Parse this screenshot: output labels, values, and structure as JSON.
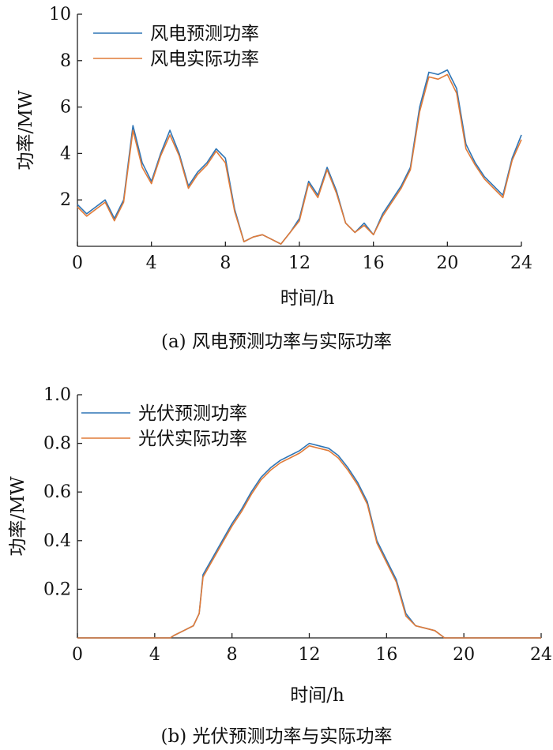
{
  "chart_data": [
    {
      "type": "line",
      "title": "(a) 风电预测功率与实际功率",
      "xlabel": "时间/h",
      "ylabel": "功率/MW",
      "xlim": [
        0,
        24
      ],
      "ylim": [
        0,
        10
      ],
      "x_ticks": [
        0,
        4,
        8,
        12,
        16,
        20,
        24
      ],
      "y_ticks": [
        2,
        4,
        6,
        8,
        10
      ],
      "legend_position": "top-left",
      "x": [
        0,
        0.5,
        1,
        1.5,
        2,
        2.5,
        3,
        3.5,
        4,
        4.5,
        5,
        5.5,
        6,
        6.5,
        7,
        7.5,
        8,
        8.5,
        9,
        9.5,
        10,
        10.5,
        11,
        11.5,
        12,
        12.5,
        13,
        13.5,
        14,
        14.5,
        15,
        15.5,
        16,
        16.5,
        17,
        17.5,
        18,
        18.5,
        19,
        19.5,
        20,
        20.5,
        21,
        21.5,
        22,
        22.5,
        23,
        23.5,
        24
      ],
      "series": [
        {
          "name": "风电预测功率",
          "color": "#2e75b6",
          "values": [
            1.8,
            1.4,
            1.7,
            2.0,
            1.2,
            2.0,
            5.2,
            3.6,
            2.8,
            4.0,
            5.0,
            4.0,
            2.6,
            3.2,
            3.6,
            4.2,
            3.8,
            1.6,
            0.2,
            0.4,
            0.5,
            0.3,
            0.1,
            0.6,
            1.2,
            2.8,
            2.2,
            3.4,
            2.4,
            1.0,
            0.6,
            1.0,
            0.5,
            1.4,
            2.0,
            2.6,
            3.4,
            6.0,
            7.5,
            7.4,
            7.6,
            6.8,
            4.4,
            3.6,
            3.0,
            2.6,
            2.2,
            3.8,
            4.8
          ]
        },
        {
          "name": "风电实际功率",
          "color": "#e07b39",
          "values": [
            1.7,
            1.3,
            1.6,
            1.9,
            1.1,
            1.9,
            5.0,
            3.4,
            2.7,
            3.9,
            4.8,
            3.9,
            2.5,
            3.1,
            3.5,
            4.1,
            3.6,
            1.5,
            0.2,
            0.4,
            0.5,
            0.3,
            0.1,
            0.6,
            1.1,
            2.7,
            2.1,
            3.3,
            2.3,
            1.0,
            0.6,
            0.9,
            0.5,
            1.3,
            1.9,
            2.5,
            3.3,
            5.8,
            7.3,
            7.2,
            7.4,
            6.6,
            4.2,
            3.5,
            2.9,
            2.5,
            2.1,
            3.7,
            4.6
          ]
        }
      ]
    },
    {
      "type": "line",
      "title": "(b) 光伏预测功率与实际功率",
      "xlabel": "时间/h",
      "ylabel": "功率/MW",
      "xlim": [
        0,
        24
      ],
      "ylim": [
        0,
        1.0
      ],
      "x_ticks": [
        0,
        4,
        8,
        12,
        16,
        20,
        24
      ],
      "x_tick_labels": [
        "0",
        "4",
        "8",
        "12",
        "16",
        "20",
        "24"
      ],
      "y_ticks": [
        0.2,
        0.4,
        0.6,
        0.8,
        1.0
      ],
      "y_tick_labels": [
        "0.2",
        "0.4",
        "0.6",
        "0.8",
        "1.0"
      ],
      "legend_position": "top-left",
      "x": [
        0,
        4.8,
        5.0,
        5.5,
        6.0,
        6.3,
        6.5,
        7.0,
        7.5,
        8.0,
        8.5,
        9.0,
        9.5,
        10.0,
        10.5,
        11.0,
        11.5,
        12.0,
        12.5,
        13.0,
        13.5,
        14.0,
        14.5,
        15.0,
        15.5,
        16.0,
        16.5,
        17.0,
        17.5,
        18.0,
        18.5,
        19.0,
        24
      ],
      "series": [
        {
          "name": "光伏预测功率",
          "color": "#2e75b6",
          "values": [
            0,
            0,
            0.01,
            0.03,
            0.05,
            0.1,
            0.26,
            0.33,
            0.4,
            0.47,
            0.53,
            0.6,
            0.66,
            0.7,
            0.73,
            0.75,
            0.77,
            0.8,
            0.79,
            0.78,
            0.75,
            0.7,
            0.64,
            0.56,
            0.4,
            0.32,
            0.24,
            0.1,
            0.05,
            0.04,
            0.03,
            0.0,
            0
          ]
        },
        {
          "name": "光伏实际功率",
          "color": "#e07b39",
          "values": [
            0,
            0,
            0.01,
            0.03,
            0.05,
            0.1,
            0.25,
            0.32,
            0.39,
            0.46,
            0.52,
            0.59,
            0.65,
            0.69,
            0.72,
            0.74,
            0.76,
            0.79,
            0.78,
            0.77,
            0.74,
            0.69,
            0.63,
            0.55,
            0.39,
            0.31,
            0.23,
            0.09,
            0.05,
            0.04,
            0.03,
            0.0,
            0
          ]
        }
      ]
    }
  ]
}
